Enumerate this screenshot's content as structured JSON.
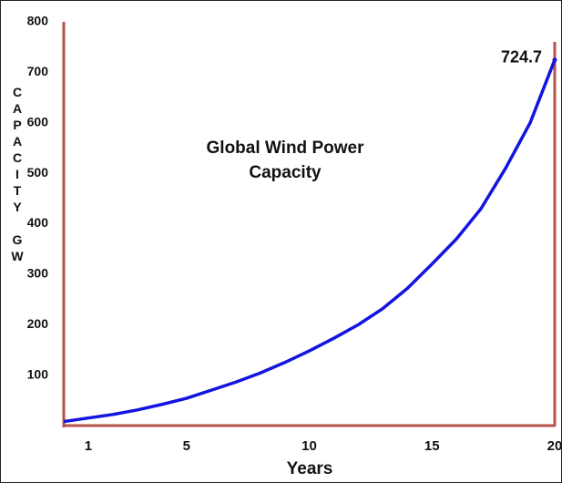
{
  "chart_data": {
    "type": "line",
    "title": "Global Wind Power Capacity",
    "xlabel": "Years",
    "ylabel": "CAPACITY GW",
    "x": [
      0,
      1,
      2,
      3,
      4,
      5,
      6,
      7,
      8,
      9,
      10,
      11,
      12,
      13,
      14,
      15,
      16,
      17,
      18,
      19,
      20
    ],
    "values": [
      8,
      15,
      22,
      31,
      42,
      54,
      70,
      86,
      104,
      125,
      148,
      173,
      200,
      232,
      272,
      320,
      370,
      430,
      510,
      600,
      724.7
    ],
    "color": "#1414e0",
    "axis_color": "#b5524a",
    "xlim": [
      0,
      20
    ],
    "xticks": [
      1,
      5,
      10,
      15,
      20
    ],
    "ylim": [
      0,
      800
    ],
    "yticks": [
      100,
      200,
      300,
      400,
      500,
      600,
      700,
      800
    ],
    "grid": false
  }
}
